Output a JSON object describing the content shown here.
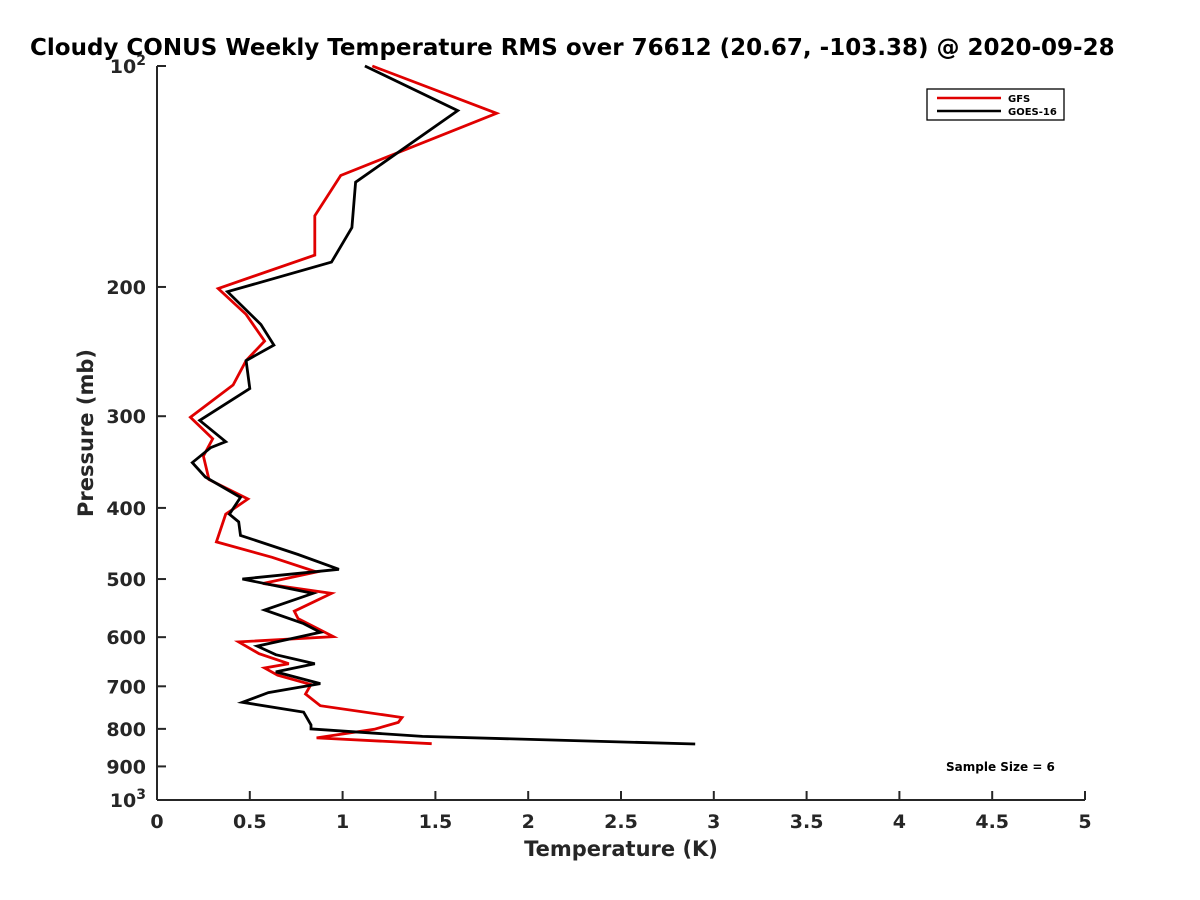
{
  "chart_data": {
    "type": "line",
    "title": "Cloudy CONUS Weekly Temperature RMS over 76612 (20.67, -103.38) @ 2020-09-28",
    "xlabel": "Temperature (K)",
    "ylabel": "Pressure (mb)",
    "xlim": [
      0,
      5
    ],
    "ylim": [
      100,
      1000
    ],
    "yscale": "log",
    "y_reversed": true,
    "x_ticks": [
      0,
      0.5,
      1,
      1.5,
      2,
      2.5,
      3,
      3.5,
      4,
      4.5,
      5
    ],
    "x_tick_labels": [
      "0",
      "0.5",
      "1",
      "1.5",
      "2",
      "2.5",
      "3",
      "3.5",
      "4",
      "4.5",
      "5"
    ],
    "y_ticks": [
      100,
      200,
      300,
      400,
      500,
      600,
      700,
      800,
      900,
      1000
    ],
    "y_tick_labels": [
      {
        "base": "10",
        "exp": "2"
      },
      {
        "base": "200",
        "exp": ""
      },
      {
        "base": "300",
        "exp": ""
      },
      {
        "base": "400",
        "exp": ""
      },
      {
        "base": "500",
        "exp": ""
      },
      {
        "base": "600",
        "exp": ""
      },
      {
        "base": "700",
        "exp": ""
      },
      {
        "base": "800",
        "exp": ""
      },
      {
        "base": "900",
        "exp": ""
      },
      {
        "base": "10",
        "exp": "3"
      }
    ],
    "legend_position": "top-right",
    "annotation": "Sample Size = 6",
    "series": [
      {
        "name": "GFS",
        "color": "#e00000",
        "points": [
          [
            1.16,
            100
          ],
          [
            1.83,
            116
          ],
          [
            0.99,
            141
          ],
          [
            0.85,
            160
          ],
          [
            0.85,
            181
          ],
          [
            0.33,
            201
          ],
          [
            0.48,
            218
          ],
          [
            0.58,
            237
          ],
          [
            0.48,
            252
          ],
          [
            0.41,
            272
          ],
          [
            0.18,
            301
          ],
          [
            0.3,
            322
          ],
          [
            0.25,
            340
          ],
          [
            0.28,
            366
          ],
          [
            0.49,
            389
          ],
          [
            0.37,
            408
          ],
          [
            0.32,
            445
          ],
          [
            0.62,
            467
          ],
          [
            0.86,
            489
          ],
          [
            0.57,
            507
          ],
          [
            0.94,
            523
          ],
          [
            0.74,
            553
          ],
          [
            0.76,
            566
          ],
          [
            0.95,
            599
          ],
          [
            0.44,
            609
          ],
          [
            0.55,
            632
          ],
          [
            0.71,
            652
          ],
          [
            0.58,
            661
          ],
          [
            0.65,
            676
          ],
          [
            0.83,
            696
          ],
          [
            0.8,
            717
          ],
          [
            0.88,
            744
          ],
          [
            1.32,
            772
          ],
          [
            1.3,
            784
          ],
          [
            1.17,
            801
          ],
          [
            0.86,
            823
          ],
          [
            1.48,
            838
          ]
        ]
      },
      {
        "name": "GOES-16",
        "color": "#000000",
        "points": [
          [
            1.12,
            100
          ],
          [
            1.62,
            115
          ],
          [
            1.07,
            144
          ],
          [
            1.05,
            166
          ],
          [
            0.94,
            185
          ],
          [
            0.38,
            203
          ],
          [
            0.56,
            225
          ],
          [
            0.63,
            240
          ],
          [
            0.48,
            252
          ],
          [
            0.5,
            275
          ],
          [
            0.23,
            304
          ],
          [
            0.37,
            325
          ],
          [
            0.29,
            331
          ],
          [
            0.19,
            347
          ],
          [
            0.26,
            363
          ],
          [
            0.45,
            387
          ],
          [
            0.39,
            408
          ],
          [
            0.44,
            418
          ],
          [
            0.45,
            436
          ],
          [
            0.76,
            463
          ],
          [
            0.98,
            485
          ],
          [
            0.46,
            500
          ],
          [
            0.84,
            523
          ],
          [
            0.58,
            551
          ],
          [
            0.79,
            575
          ],
          [
            0.88,
            591
          ],
          [
            0.54,
            617
          ],
          [
            0.64,
            634
          ],
          [
            0.85,
            652
          ],
          [
            0.64,
            669
          ],
          [
            0.88,
            694
          ],
          [
            0.6,
            714
          ],
          [
            0.46,
            736
          ],
          [
            0.79,
            759
          ],
          [
            0.83,
            790
          ],
          [
            0.83,
            800
          ],
          [
            1.43,
            819
          ],
          [
            2.9,
            839
          ]
        ]
      }
    ]
  }
}
